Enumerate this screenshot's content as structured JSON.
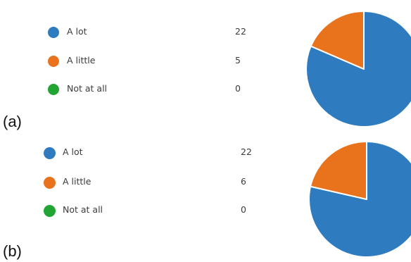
{
  "panels": [
    {
      "label": "(a)",
      "items": [
        {
          "label": "A lot",
          "count": "22"
        },
        {
          "label": "A little",
          "count": "5"
        },
        {
          "label": "Not at all",
          "count": "0"
        }
      ]
    },
    {
      "label": "(b)",
      "items": [
        {
          "label": "A lot",
          "count": "22"
        },
        {
          "label": "A little",
          "count": "6"
        },
        {
          "label": "Not at all",
          "count": "0"
        }
      ]
    }
  ],
  "colors": {
    "a_lot": "#2e7bbf",
    "a_little": "#e8731c",
    "not_at_all": "#22a533"
  },
  "chart_data": [
    {
      "type": "pie",
      "panel": "(a)",
      "categories": [
        "A lot",
        "A little",
        "Not at all"
      ],
      "values": [
        22,
        5,
        0
      ],
      "colors": [
        "#2e7bbf",
        "#e8731c",
        "#22a533"
      ],
      "start": "12 o'clock, clockwise"
    },
    {
      "type": "pie",
      "panel": "(b)",
      "categories": [
        "A lot",
        "A little",
        "Not at all"
      ],
      "values": [
        22,
        6,
        0
      ],
      "colors": [
        "#2e7bbf",
        "#e8731c",
        "#22a533"
      ],
      "start": "12 o'clock, clockwise"
    }
  ]
}
